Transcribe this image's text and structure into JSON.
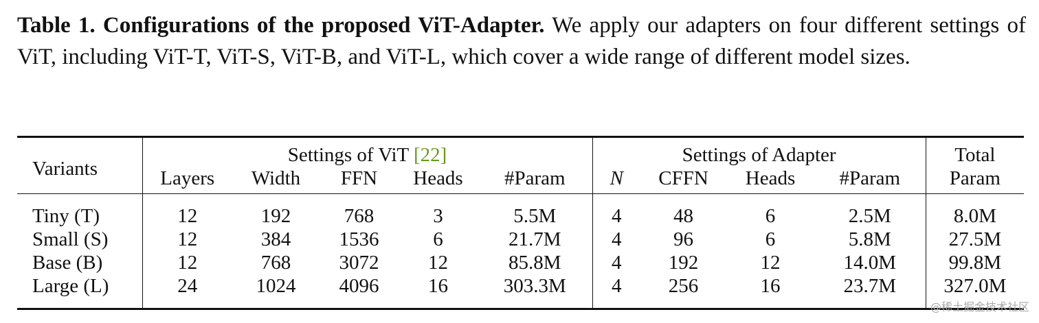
{
  "caption": {
    "label": "Table 1. Configurations of the proposed ViT-Adapter.",
    "text": "We apply our adapters on four different settings of ViT, including ViT-T, ViT-S, ViT-B, and ViT-L, which cover a wide range of different model sizes."
  },
  "table": {
    "header": {
      "variants": "Variants",
      "groups": [
        {
          "label": "Settings of ViT",
          "citation": "[22]"
        },
        {
          "label": "Settings of Adapter"
        }
      ],
      "columns": [
        "Layers",
        "Width",
        "FFN",
        "Heads",
        "#Param",
        "N",
        "CFFN",
        "Heads",
        "#Param"
      ],
      "total": [
        "Total",
        "Param"
      ]
    },
    "rows": [
      [
        "Tiny (T)",
        12,
        192,
        768,
        3,
        "5.5M",
        4,
        48,
        6,
        "2.5M",
        "8.0M"
      ],
      [
        "Small (S)",
        12,
        384,
        1536,
        6,
        "21.7M",
        4,
        96,
        6,
        "5.8M",
        "27.5M"
      ],
      [
        "Base (B)",
        12,
        768,
        3072,
        12,
        "85.8M",
        4,
        192,
        12,
        "14.0M",
        "99.8M"
      ],
      [
        "Large (L)",
        24,
        1024,
        4096,
        16,
        "303.3M",
        4,
        256,
        16,
        "23.7M",
        "327.0M"
      ]
    ]
  },
  "watermark": "@稀土掘金技术社区"
}
